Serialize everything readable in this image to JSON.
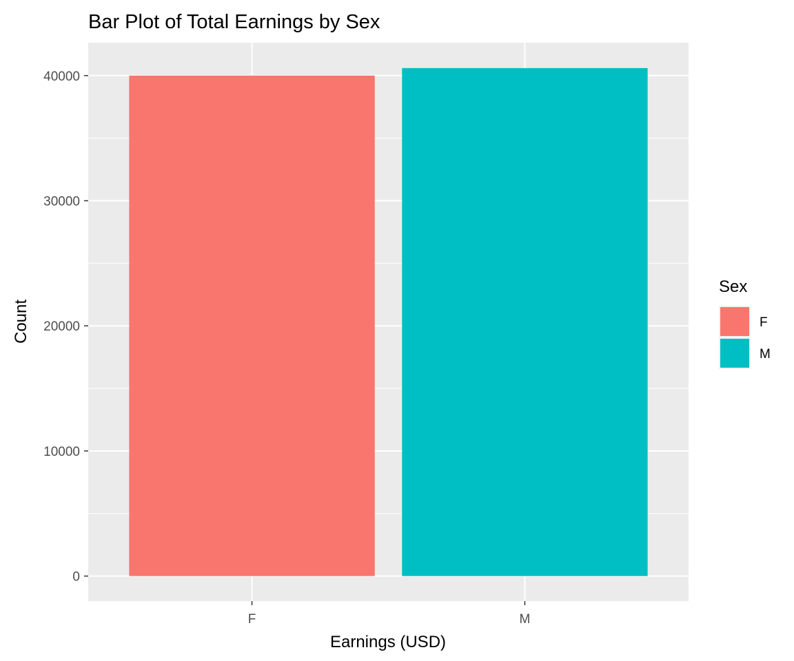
{
  "chart_data": {
    "type": "bar",
    "title": "Bar Plot of Total Earnings by Sex",
    "xlabel": "Earnings (USD)",
    "ylabel": "Count",
    "categories": [
      "F",
      "M"
    ],
    "values": [
      40000,
      40600
    ],
    "bar_colors": [
      "#F8766D",
      "#00BFC4"
    ],
    "ylim": [
      -2000,
      42630
    ],
    "yticks": [
      0,
      10000,
      20000,
      30000,
      40000
    ],
    "ytick_labels": [
      "0",
      "10000",
      "20000",
      "30000",
      "40000"
    ],
    "grid": true,
    "panel_background": "#EBEBEB",
    "grid_color": "#FFFFFF",
    "legend": {
      "title": "Sex",
      "position": "right",
      "entries": [
        {
          "label": "F",
          "color": "#F8766D"
        },
        {
          "label": "M",
          "color": "#00BFC4"
        }
      ]
    }
  }
}
